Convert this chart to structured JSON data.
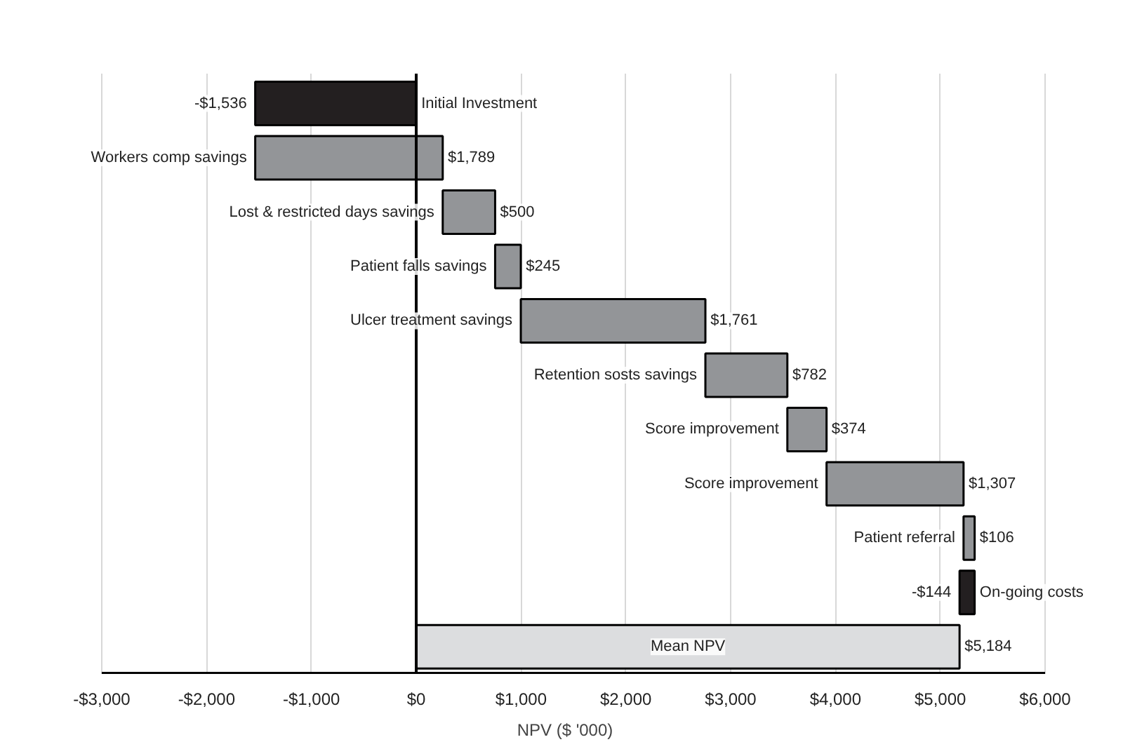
{
  "chart_data": {
    "type": "bar",
    "orientation": "horizontal",
    "xlabel": "NPV ($ '000)",
    "categories": [
      "Initial Investment",
      "Workers comp savings",
      "Lost & restricted days savings",
      "Patient falls savings",
      "Ulcer treatment savings",
      "Retention sosts savings",
      "Score improvement",
      "Score improvement",
      "Patient referral",
      "On-going costs",
      "Mean NPV"
    ],
    "values": [
      -1536,
      1789,
      500,
      245,
      1761,
      782,
      374,
      1307,
      106,
      -144,
      5184
    ],
    "base": [
      0,
      -1536,
      253,
      753,
      998,
      2759,
      3541,
      3915,
      5222,
      5328,
      0
    ],
    "value_labels": [
      "-$1,536",
      "$1,789",
      "$500",
      "$245",
      "$1,761",
      "$782",
      "$374",
      "$1,307",
      "$106",
      "-$144",
      "$5,184"
    ],
    "colors": [
      "#231f20",
      "#939598",
      "#939598",
      "#939598",
      "#939598",
      "#939598",
      "#939598",
      "#939598",
      "#939598",
      "#231f20",
      "#dcdddf"
    ],
    "xlim": [
      -3000,
      6000
    ],
    "xticks": [
      {
        "value": -3000,
        "label": "-$3,000"
      },
      {
        "value": -2000,
        "label": "-$2,000"
      },
      {
        "value": -1000,
        "label": "-$1,000"
      },
      {
        "value": 0,
        "label": "$0"
      },
      {
        "value": 1000,
        "label": "$1,000"
      },
      {
        "value": 2000,
        "label": "$2,000"
      },
      {
        "value": 3000,
        "label": "$3,000"
      },
      {
        "value": 4000,
        "label": "$4,000"
      },
      {
        "value": 5000,
        "label": "$5,000"
      },
      {
        "value": 6000,
        "label": "$6,000"
      }
    ],
    "grid": "x",
    "tick_labels": "x"
  }
}
